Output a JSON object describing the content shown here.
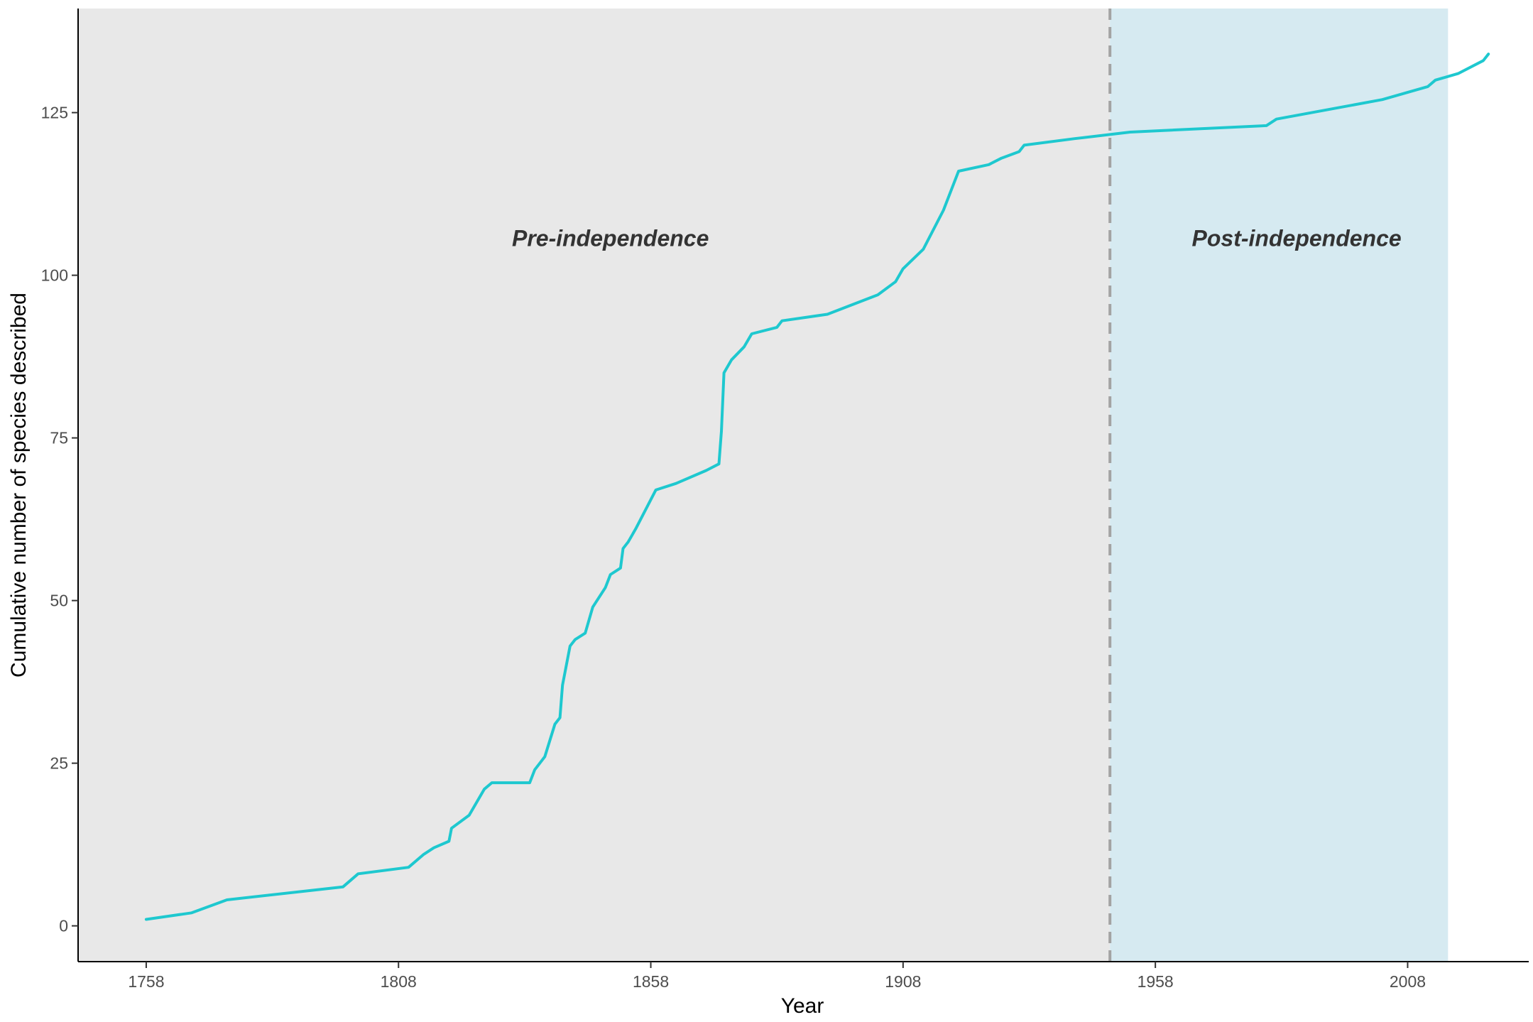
{
  "chart_data": {
    "type": "line",
    "title": "",
    "xlabel": "Year",
    "ylabel": "Cumulative number of species described",
    "xlim": [
      1744.5,
      2032
    ],
    "ylim": [
      -5.5,
      141
    ],
    "x_ticks": [
      1758,
      1808,
      1858,
      1908,
      1958,
      2008
    ],
    "y_ticks": [
      0,
      25,
      50,
      75,
      100,
      125
    ],
    "grid": false,
    "legend": "none",
    "regions": [
      {
        "label": "Pre-independence",
        "from": 1744.5,
        "to": 1949,
        "color": "#e8e8e8"
      },
      {
        "label": "Post-independence",
        "from": 1949,
        "to": 2016,
        "color": "#d6eaf1"
      }
    ],
    "reference_line": {
      "x": 1949,
      "style": "dashed",
      "color": "#a3a3a3"
    },
    "series": [
      {
        "color": "#1ec8cf",
        "x": [
          1758,
          1767,
          1774,
          1797,
          1800,
          1810,
          1813,
          1815,
          1818,
          1818.5,
          1822,
          1825,
          1826.5,
          1834,
          1835,
          1837,
          1839,
          1840,
          1840.5,
          1842,
          1843,
          1845,
          1846.5,
          1849,
          1850,
          1852,
          1852.5,
          1853.5,
          1855,
          1859,
          1863,
          1869,
          1871.5,
          1872,
          1872.5,
          1874,
          1876.5,
          1878,
          1883,
          1884,
          1893,
          1903,
          1906.5,
          1908,
          1912,
          1916,
          1919,
          1925,
          1927.5,
          1931,
          1932,
          1942,
          1953,
          1980,
          1982,
          2003,
          2012,
          2013.5,
          2018,
          2023,
          2024
        ],
        "y": [
          1,
          2,
          4,
          6,
          8,
          9,
          11,
          12,
          13,
          15,
          17,
          21,
          22,
          22,
          24,
          26,
          31,
          32,
          37,
          43,
          44,
          45,
          49,
          52,
          54,
          55,
          58,
          59,
          61,
          67,
          68,
          70,
          71,
          76,
          85,
          87,
          89,
          91,
          92,
          93,
          94,
          97,
          99,
          101,
          104,
          110,
          116,
          117,
          118,
          119,
          120,
          121,
          122,
          123,
          124,
          127,
          129,
          130,
          131,
          133,
          134
        ]
      }
    ],
    "annotations": [
      {
        "text": "Pre-independence",
        "x": 1850,
        "y": 104.5
      },
      {
        "text": "Post-independence",
        "x": 1986,
        "y": 104.5
      }
    ]
  }
}
